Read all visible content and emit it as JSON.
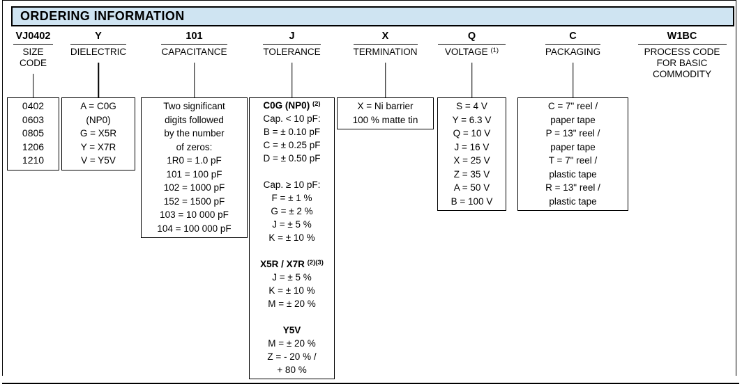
{
  "header": {
    "title": "ORDERING INFORMATION"
  },
  "colors": {
    "header_bg": "#cfe4f2",
    "border": "#000000",
    "text": "#000000"
  },
  "columns": [
    {
      "code": "VJ0402",
      "label_lines": [
        "SIZE",
        "CODE"
      ],
      "box_lines": [
        "0402",
        "0603",
        "0805",
        "1206",
        "1210"
      ]
    },
    {
      "code": "Y",
      "label_lines": [
        "DIELECTRIC"
      ],
      "box_lines": [
        "A = C0G",
        "(NP0)",
        "G = X5R",
        "Y = X7R",
        "V = Y5V"
      ]
    },
    {
      "code": "101",
      "label_lines": [
        "CAPACITANCE"
      ],
      "box_lines": [
        "Two significant",
        "digits followed",
        "by the number",
        "of zeros:",
        "1R0 = 1.0 pF",
        "101 = 100 pF",
        "102 = 1000 pF",
        "152 = 1500 pF",
        "103 = 10 000 pF",
        "104 = 100 000 pF"
      ]
    },
    {
      "code": "J",
      "label_lines": [
        "TOLERANCE"
      ],
      "box_rich": [
        {
          "t": "C0G (NP0) ",
          "b": true,
          "sup": "(2)"
        },
        {
          "t": "Cap. < 10 pF:"
        },
        {
          "t": "B = ± 0.10 pF"
        },
        {
          "t": "C = ± 0.25 pF"
        },
        {
          "t": "D = ± 0.50 pF"
        },
        {
          "t": "",
          "blank": true
        },
        {
          "t": "Cap. ≥ 10 pF:"
        },
        {
          "t": "F = ± 1 %"
        },
        {
          "t": "G = ± 2 %"
        },
        {
          "t": "J = ± 5 %"
        },
        {
          "t": "K = ± 10 %"
        },
        {
          "t": "",
          "blank": true
        },
        {
          "t": "X5R / X7R ",
          "b": true,
          "sup": "(2)(3)"
        },
        {
          "t": "J = ± 5 %"
        },
        {
          "t": "K = ± 10 %"
        },
        {
          "t": "M = ± 20 %"
        },
        {
          "t": "",
          "blank": true
        },
        {
          "t": "Y5V",
          "b": true
        },
        {
          "t": "M = ± 20 %"
        },
        {
          "t": "Z = - 20 % /"
        },
        {
          "t": "+ 80 %"
        }
      ]
    },
    {
      "code": "X",
      "label_lines": [
        "TERMINATION"
      ],
      "box_lines": [
        "X = Ni barrier",
        "100 % matte tin"
      ]
    },
    {
      "code": "Q",
      "label_lines": [
        "VOLTAGE "
      ],
      "label_sup": "(1)",
      "box_lines": [
        "S = 4 V",
        "Y = 6.3 V",
        "Q = 10 V",
        "J = 16 V",
        "X = 25 V",
        "Z = 35 V",
        "A = 50 V",
        "B = 100 V"
      ]
    },
    {
      "code": "C",
      "label_lines": [
        "PACKAGING"
      ],
      "box_lines": [
        "C = 7\" reel /",
        "paper tape",
        "P = 13\" reel /",
        "paper tape",
        "T = 7\" reel /",
        "plastic tape",
        "R = 13\" reel /",
        "plastic tape"
      ]
    },
    {
      "code": "W1BC",
      "label_lines": [
        "PROCESS CODE",
        "FOR BASIC",
        "COMMODITY"
      ]
    }
  ]
}
